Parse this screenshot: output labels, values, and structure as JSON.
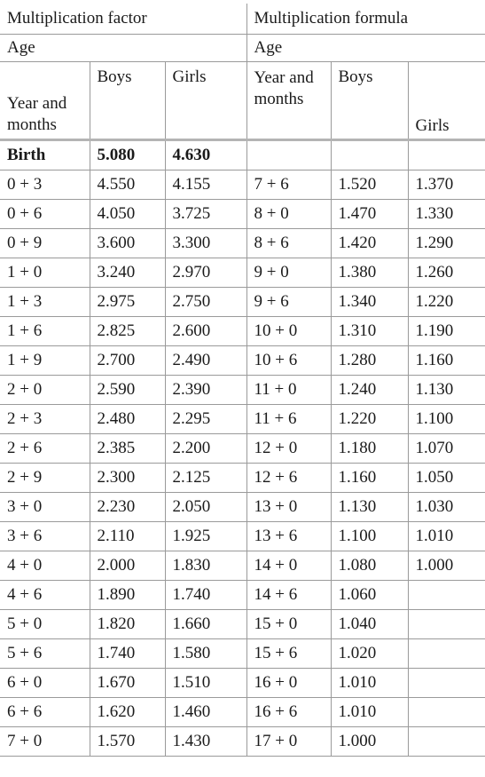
{
  "header": {
    "factor_title": "Multiplication factor",
    "formula_title": "Multiplication formula",
    "age_left": "Age",
    "age_right": "Age",
    "col_year_left": "Year and months",
    "col_boys_left": "Boys",
    "col_girls_left": "Girls",
    "col_year_right": "Year and months",
    "col_boys_right": "Boys",
    "col_girls_right": "Girls"
  },
  "rows": [
    {
      "age": "Birth",
      "boys": "5.080",
      "girls": "4.630",
      "age2": "",
      "boys2": "",
      "girls2": ""
    },
    {
      "age": "0 + 3",
      "boys": "4.550",
      "girls": "4.155",
      "age2": "7 + 6",
      "boys2": "1.520",
      "girls2": "1.370"
    },
    {
      "age": "0 + 6",
      "boys": "4.050",
      "girls": "3.725",
      "age2": "8 + 0",
      "boys2": "1.470",
      "girls2": "1.330"
    },
    {
      "age": "0 + 9",
      "boys": "3.600",
      "girls": "3.300",
      "age2": "8 + 6",
      "boys2": "1.420",
      "girls2": "1.290"
    },
    {
      "age": "1 + 0",
      "boys": "3.240",
      "girls": "2.970",
      "age2": "9 + 0",
      "boys2": "1.380",
      "girls2": "1.260"
    },
    {
      "age": "1 + 3",
      "boys": "2.975",
      "girls": "2.750",
      "age2": "9 + 6",
      "boys2": "1.340",
      "girls2": "1.220"
    },
    {
      "age": "1 + 6",
      "boys": "2.825",
      "girls": "2.600",
      "age2": "10 + 0",
      "boys2": "1.310",
      "girls2": "1.190"
    },
    {
      "age": "1 + 9",
      "boys": "2.700",
      "girls": "2.490",
      "age2": "10 + 6",
      "boys2": "1.280",
      "girls2": "1.160"
    },
    {
      "age": "2 + 0",
      "boys": "2.590",
      "girls": "2.390",
      "age2": "11 + 0",
      "boys2": "1.240",
      "girls2": "1.130"
    },
    {
      "age": "2 + 3",
      "boys": "2.480",
      "girls": "2.295",
      "age2": "11 + 6",
      "boys2": "1.220",
      "girls2": "1.100"
    },
    {
      "age": "2 + 6",
      "boys": "2.385",
      "girls": "2.200",
      "age2": "12 + 0",
      "boys2": "1.180",
      "girls2": "1.070"
    },
    {
      "age": "2 + 9",
      "boys": "2.300",
      "girls": "2.125",
      "age2": "12 + 6",
      "boys2": "1.160",
      "girls2": "1.050"
    },
    {
      "age": "3 + 0",
      "boys": "2.230",
      "girls": "2.050",
      "age2": "13 + 0",
      "boys2": "1.130",
      "girls2": "1.030"
    },
    {
      "age": "3 + 6",
      "boys": "2.110",
      "girls": "1.925",
      "age2": "13 + 6",
      "boys2": "1.100",
      "girls2": "1.010"
    },
    {
      "age": "4 + 0",
      "boys": "2.000",
      "girls": "1.830",
      "age2": "14 + 0",
      "boys2": "1.080",
      "girls2": "1.000"
    },
    {
      "age": "4 + 6",
      "boys": "1.890",
      "girls": "1.740",
      "age2": "14 + 6",
      "boys2": "1.060",
      "girls2": ""
    },
    {
      "age": "5 + 0",
      "boys": "1.820",
      "girls": "1.660",
      "age2": "15 + 0",
      "boys2": "1.040",
      "girls2": ""
    },
    {
      "age": "5 + 6",
      "boys": "1.740",
      "girls": "1.580",
      "age2": "15 + 6",
      "boys2": "1.020",
      "girls2": ""
    },
    {
      "age": "6 + 0",
      "boys": "1.670",
      "girls": "1.510",
      "age2": "16 + 0",
      "boys2": "1.010",
      "girls2": ""
    },
    {
      "age": "6 + 6",
      "boys": "1.620",
      "girls": "1.460",
      "age2": "16 + 6",
      "boys2": "1.010",
      "girls2": ""
    },
    {
      "age": "7 + 0",
      "boys": "1.570",
      "girls": "1.430",
      "age2": "17 + 0",
      "boys2": "1.000",
      "girls2": ""
    }
  ]
}
